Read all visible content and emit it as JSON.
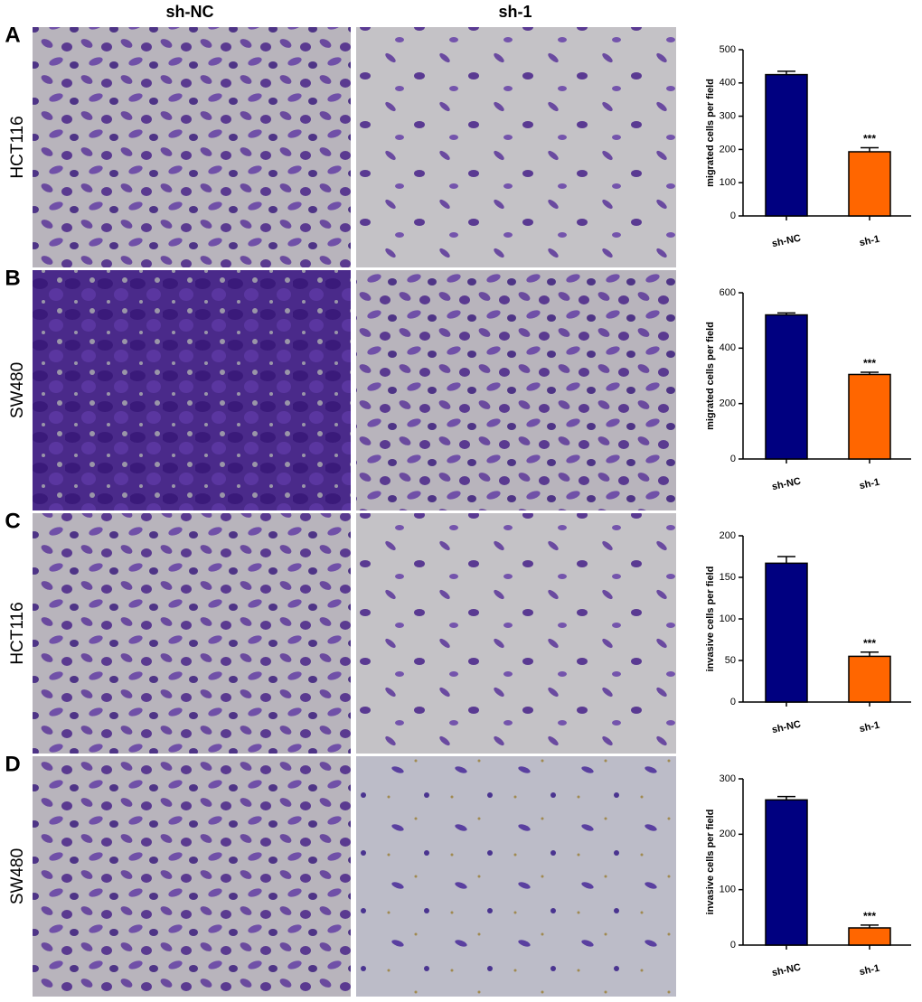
{
  "figure": {
    "columns": [
      "sh-NC",
      "sh-1"
    ],
    "panels": [
      {
        "letter": "A",
        "row_label": "HCT116"
      },
      {
        "letter": "B",
        "row_label": "SW480"
      },
      {
        "letter": "C",
        "row_label": "HCT116"
      },
      {
        "letter": "D",
        "row_label": "SW480"
      }
    ]
  },
  "chart_data": [
    {
      "type": "bar",
      "ylabel": "migrated cells per field",
      "categories": [
        "sh-NC",
        "sh-1"
      ],
      "values": [
        425,
        193
      ],
      "errors": [
        10,
        12
      ],
      "colors": [
        "#000080",
        "#ff6600"
      ],
      "ylim": [
        0,
        500
      ],
      "yticks": [
        0,
        100,
        200,
        300,
        400,
        500
      ],
      "annotation": "***"
    },
    {
      "type": "bar",
      "ylabel": "migrated cells per field",
      "categories": [
        "sh-NC",
        "sh-1"
      ],
      "values": [
        520,
        305
      ],
      "errors": [
        7,
        8
      ],
      "colors": [
        "#000080",
        "#ff6600"
      ],
      "ylim": [
        0,
        600
      ],
      "yticks": [
        0,
        200,
        400,
        600
      ],
      "annotation": "***"
    },
    {
      "type": "bar",
      "ylabel": "invasive cells per field",
      "categories": [
        "sh-NC",
        "sh-1"
      ],
      "values": [
        167,
        55
      ],
      "errors": [
        8,
        5
      ],
      "colors": [
        "#000080",
        "#ff6600"
      ],
      "ylim": [
        0,
        200
      ],
      "yticks": [
        0,
        50,
        100,
        150,
        200
      ],
      "annotation": "***"
    },
    {
      "type": "bar",
      "ylabel": "invasive cells per field",
      "categories": [
        "sh-NC",
        "sh-1"
      ],
      "values": [
        262,
        31
      ],
      "errors": [
        6,
        5
      ],
      "colors": [
        "#000080",
        "#ff6600"
      ],
      "ylim": [
        0,
        300
      ],
      "yticks": [
        0,
        100,
        200,
        300
      ],
      "annotation": "***"
    }
  ]
}
